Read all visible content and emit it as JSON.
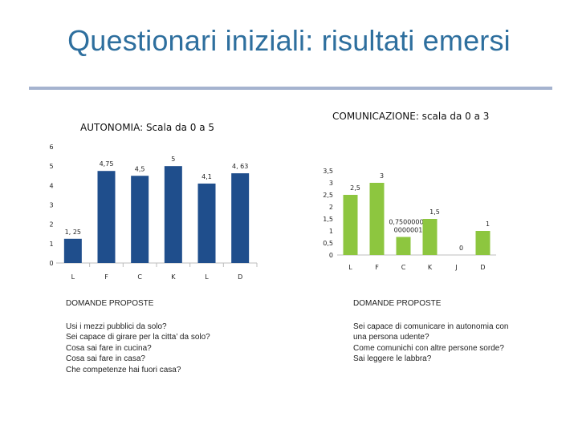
{
  "slide": {
    "title": "Questionari iniziali: risultati emersi"
  },
  "charts": [
    {
      "title": "AUTONOMIA: Scala da 0 a 5",
      "type": "bar",
      "categories": [
        "L",
        "F",
        "C",
        "K",
        "L",
        "D"
      ],
      "values": [
        1.25,
        4.75,
        4.5,
        5,
        4.1,
        4.63
      ],
      "value_labels": [
        "1, 25",
        "4,75",
        "4,5",
        "5",
        "4,1",
        "4, 63"
      ],
      "y_ticks": [
        "0",
        "1",
        "2",
        "3",
        "4",
        "5",
        "6"
      ],
      "ylim": [
        0,
        6
      ],
      "color": "#1f4e8c"
    },
    {
      "title": "COMUNICAZIONE: scala da 0 a 3",
      "type": "bar",
      "categories": [
        "L",
        "F",
        "C",
        "K",
        "J",
        "D"
      ],
      "values": [
        2.5,
        3,
        0.75,
        1.5,
        0,
        1
      ],
      "value_labels": [
        "2,5",
        "3",
        "0,75000000 0000001",
        "1,5",
        "0",
        "1"
      ],
      "y_ticks": [
        "0",
        "0,5",
        "1",
        "1,5",
        "2",
        "2,5",
        "3",
        "3,5"
      ],
      "ylim": [
        0,
        3.5
      ],
      "color": "#8dc63f"
    }
  ],
  "chart_data": [
    {
      "type": "bar",
      "title": "AUTONOMIA: Scala da 0 a 5",
      "categories": [
        "L",
        "F",
        "C",
        "K",
        "L",
        "D"
      ],
      "values": [
        1.25,
        4.75,
        4.5,
        5,
        4.1,
        4.63
      ],
      "ylim": [
        0,
        6
      ]
    },
    {
      "type": "bar",
      "title": "COMUNICAZIONE: scala da 0 a 3",
      "categories": [
        "L",
        "F",
        "C",
        "K",
        "J",
        "D"
      ],
      "values": [
        2.5,
        3,
        0.75,
        1.5,
        0,
        1
      ],
      "ylim": [
        0,
        3.5
      ]
    }
  ],
  "notes_left": {
    "header": "DOMANDE PROPOSTE",
    "lines": [
      "Usi i mezzi pubblici da solo?",
      "Sei capace di girare per la citta’ da solo?",
      "Cosa sai fare in cucina?",
      "Cosa sai fare in casa?",
      "Che competenze hai fuori casa?"
    ]
  },
  "notes_right": {
    "header": "DOMANDE PROPOSTE",
    "lines": [
      "Sei capace di comunicare in autonomia con",
      "una persona udente?",
      "Come comunichi con altre persone sorde?",
      "Sai leggere le labbra?"
    ]
  }
}
